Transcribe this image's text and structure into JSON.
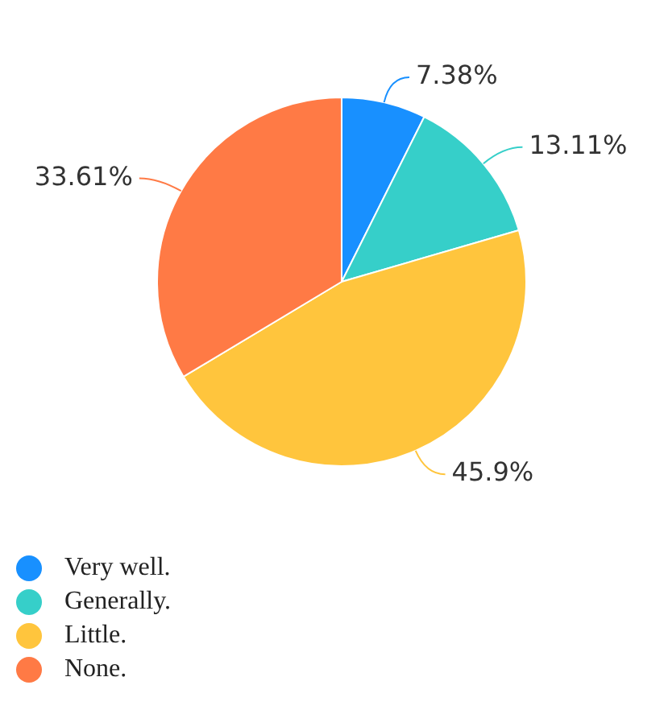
{
  "chart_data": {
    "type": "pie",
    "categories": [
      "Very well.",
      "Generally.",
      "Little.",
      "None."
    ],
    "values": [
      7.38,
      13.11,
      45.9,
      33.61
    ],
    "colors": [
      "#1890ff",
      "#36cfc9",
      "#ffc53d",
      "#ff7a45"
    ],
    "value_labels": [
      "7.38%",
      "13.11%",
      "45.9%",
      "33.61%"
    ],
    "legend": "bottom left"
  }
}
